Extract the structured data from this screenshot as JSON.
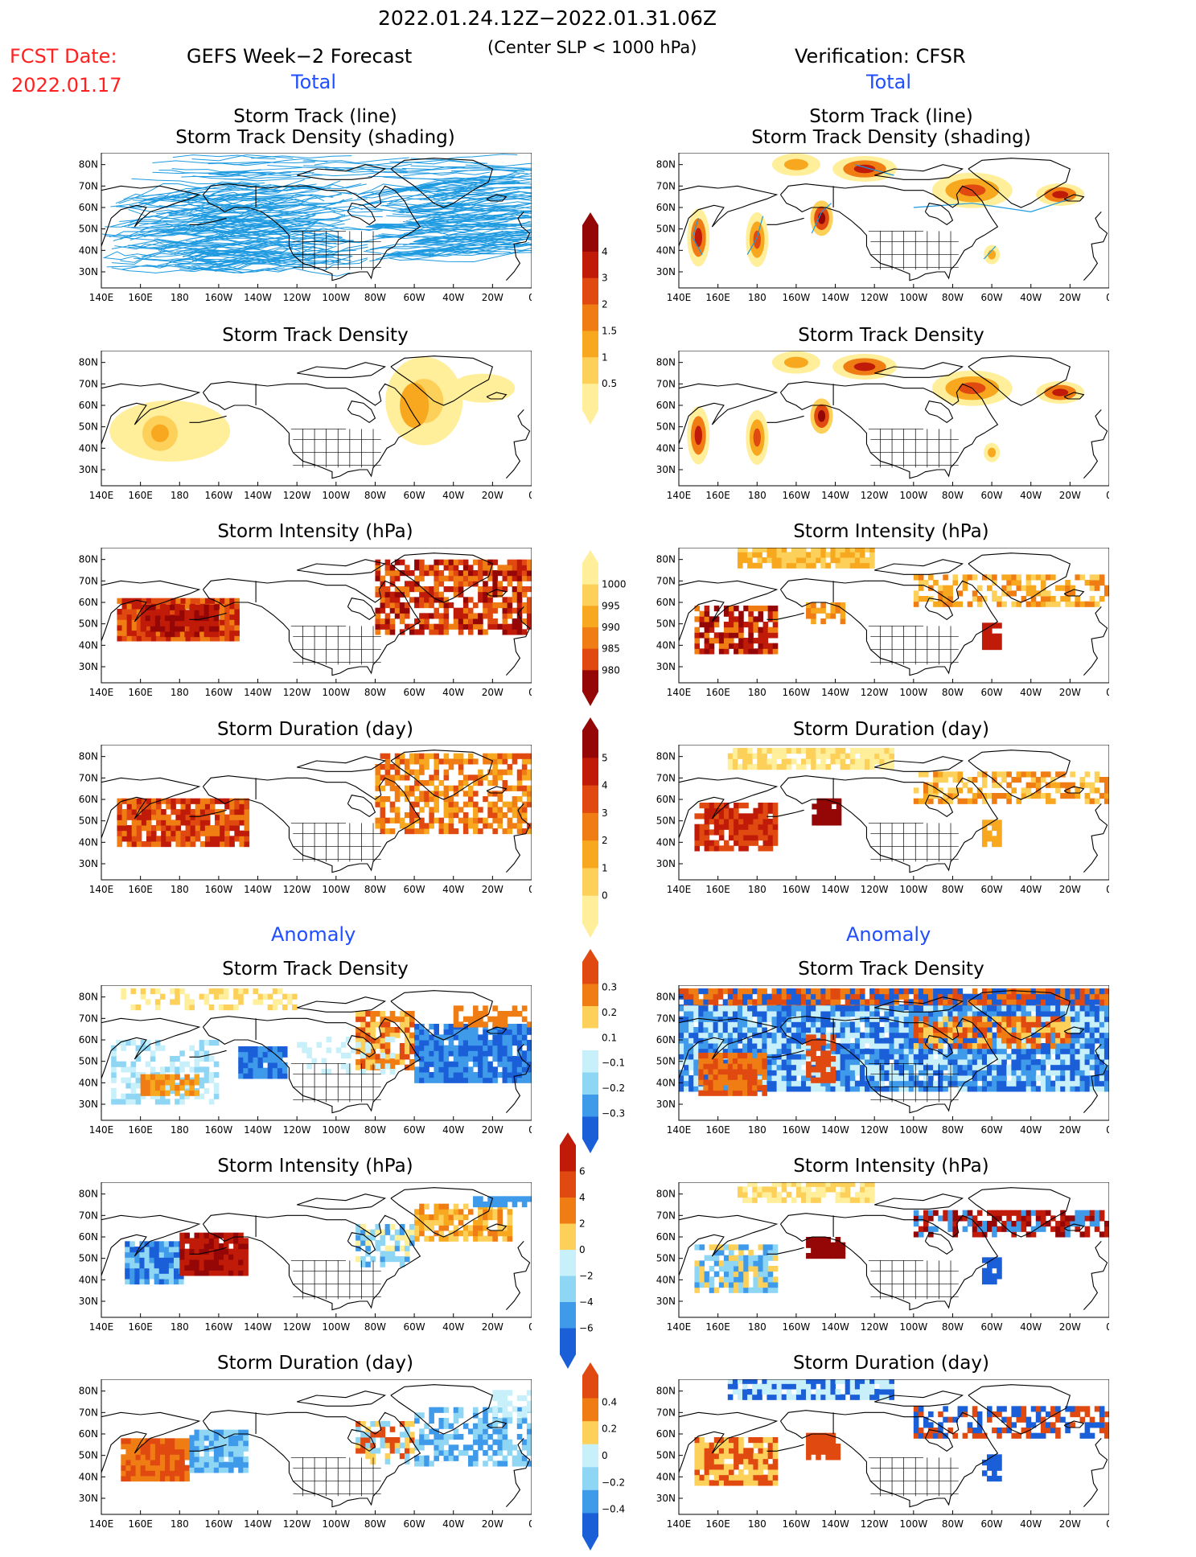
{
  "header": {
    "date_range": "2022.01.24.12Z−2022.01.31.06Z",
    "fcst_label": "FCST Date:",
    "fcst_date": "2022.01.17",
    "left_title": "GEFS Week−2 Forecast",
    "center_note": "(Center SLP < 1000 hPa)",
    "right_title": "Verification: CFSR",
    "left_total": "Total",
    "right_total": "Total",
    "left_anomaly": "Anomaly",
    "right_anomaly": "Anomaly"
  },
  "panel_titles": {
    "track_line": "Storm Track (line)",
    "track_shading": "Storm Track Density (shading)",
    "density": "Storm Track Density",
    "intensity": "Storm Intensity (hPa)",
    "duration": "Storm Duration (day)"
  },
  "axes": {
    "lat_labels": [
      "80N",
      "70N",
      "60N",
      "50N",
      "40N",
      "30N"
    ],
    "lon_labels": [
      "140E",
      "160E",
      "180",
      "160W",
      "140W",
      "120W",
      "100W",
      "80W",
      "60W",
      "40W",
      "20W",
      "0"
    ]
  },
  "colorbars": {
    "total_density": [
      "4",
      "3",
      "2",
      "1.5",
      "1",
      "0.5"
    ],
    "total_intensity": [
      "1000",
      "995",
      "990",
      "985",
      "980"
    ],
    "total_duration": [
      "5",
      "4",
      "3",
      "2",
      "1",
      "0"
    ],
    "anom_density": [
      "0.3",
      "0.2",
      "0.1",
      "−0.1",
      "−0.2",
      "−0.3"
    ],
    "anom_intensity": [
      "6",
      "4",
      "2",
      "0",
      "−2",
      "−4",
      "−6"
    ],
    "anom_duration": [
      "0.4",
      "0.2",
      "0",
      "−0.2",
      "−0.4"
    ]
  },
  "colors": {
    "warm_scale": [
      "#ffee9a",
      "#fdd05a",
      "#f8a81e",
      "#f07c14",
      "#e04a10",
      "#c01a08",
      "#950606"
    ],
    "cool_scale": [
      "#c8f0fa",
      "#8fd6f4",
      "#3f9aea",
      "#1a5fd8"
    ],
    "track_line": "#1e9ae0",
    "title_red": "#ff2020",
    "title_blue": "#1f4fff"
  }
}
